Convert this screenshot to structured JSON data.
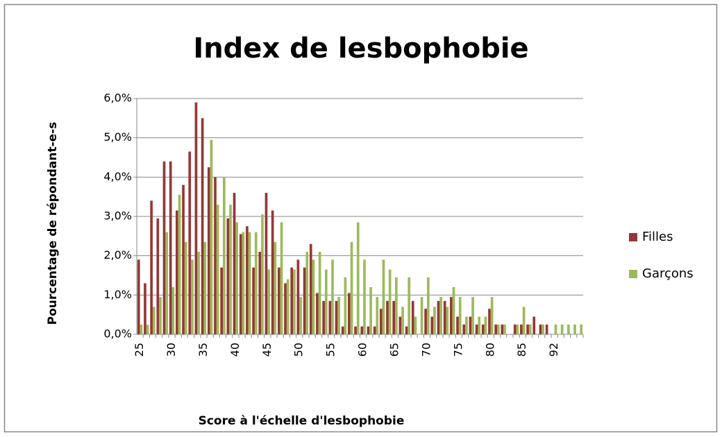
{
  "chart_data": {
    "type": "bar",
    "title": "Index de lesbophobie",
    "x_label": "Score à l'échelle d'lesbophobie",
    "y_label": "Pourcentage de répondant-e-s",
    "categories": [
      "25",
      null,
      null,
      null,
      null,
      "30",
      null,
      null,
      null,
      null,
      "35",
      null,
      null,
      null,
      null,
      "40",
      null,
      null,
      null,
      null,
      "45",
      null,
      null,
      null,
      null,
      "50",
      null,
      null,
      null,
      null,
      "55",
      null,
      null,
      null,
      null,
      "60",
      null,
      null,
      null,
      null,
      "65",
      null,
      null,
      null,
      null,
      "70",
      null,
      null,
      null,
      null,
      "75",
      null,
      null,
      null,
      null,
      "80",
      null,
      null,
      null,
      null,
      "85",
      null,
      null,
      null,
      null,
      "92",
      null,
      null,
      null,
      null
    ],
    "series": [
      {
        "name": "Filles",
        "color": "#953735",
        "values": [
          1.9,
          1.3,
          3.4,
          2.95,
          4.4,
          4.4,
          3.15,
          3.8,
          4.65,
          5.9,
          5.5,
          4.25,
          4.0,
          1.7,
          2.95,
          3.6,
          2.55,
          2.75,
          1.7,
          2.1,
          3.6,
          3.15,
          1.7,
          1.3,
          1.7,
          1.9,
          1.7,
          2.3,
          1.05,
          0.85,
          0.85,
          0.85,
          0.2,
          1.05,
          0.2,
          0.2,
          0.2,
          0.2,
          0.65,
          0.85,
          0.85,
          0.45,
          0.2,
          0.85,
          0,
          0.65,
          0.45,
          0.85,
          0.85,
          0.95,
          0.45,
          0.25,
          0.45,
          0.25,
          0.25,
          0.65,
          0.25,
          0.25,
          0,
          0.25,
          0.25,
          0.25,
          0.45,
          0.25,
          0.25,
          0,
          0,
          0,
          0,
          0
        ]
      },
      {
        "name": "Garçons",
        "color": "#9bbb59",
        "values": [
          0.25,
          0.25,
          0.7,
          0.95,
          2.6,
          1.2,
          3.55,
          2.35,
          1.9,
          2.1,
          2.35,
          4.95,
          3.3,
          4.0,
          3.3,
          2.85,
          2.6,
          2.6,
          2.6,
          3.05,
          1.65,
          2.35,
          2.85,
          1.4,
          1.65,
          0.95,
          2.1,
          1.9,
          2.1,
          1.65,
          1.9,
          0.95,
          1.45,
          2.35,
          2.85,
          1.9,
          1.2,
          0.95,
          1.9,
          1.65,
          1.45,
          0.7,
          1.45,
          0.45,
          0.95,
          1.45,
          0.7,
          0.95,
          0.7,
          1.2,
          0.95,
          0.45,
          0.95,
          0.45,
          0.45,
          0.95,
          0.25,
          0.25,
          0,
          0.25,
          0.7,
          0.25,
          0,
          0.25,
          0,
          0.25,
          0.25,
          0.25,
          0.25,
          0.25
        ]
      }
    ],
    "ylim": [
      0,
      6
    ],
    "yticks": [
      {
        "value": 0,
        "label": "0,0%"
      },
      {
        "value": 1,
        "label": "1,0%"
      },
      {
        "value": 2,
        "label": "2,0%"
      },
      {
        "value": 3,
        "label": "3,0%"
      },
      {
        "value": 4,
        "label": "4,0%"
      },
      {
        "value": 5,
        "label": "5,0%"
      },
      {
        "value": 6,
        "label": "6,0%"
      }
    ],
    "grid": true,
    "legend": "right"
  }
}
